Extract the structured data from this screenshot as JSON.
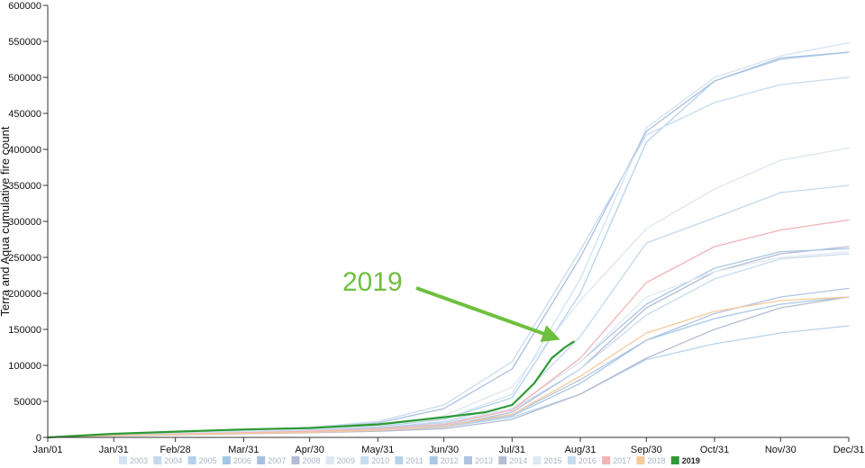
{
  "chart_data": {
    "type": "line",
    "ylabel": "Terra and Aqua cumulative fire count",
    "xlabel": "",
    "ylim": [
      0,
      600000
    ],
    "y_ticks": [
      0,
      50000,
      100000,
      150000,
      200000,
      250000,
      300000,
      350000,
      400000,
      450000,
      500000,
      550000,
      600000
    ],
    "x_tick_labels": [
      "Jan/01",
      "Jan/31",
      "Feb/28",
      "Mar/31",
      "Apr/30",
      "May/31",
      "Jun/30",
      "Jul/31",
      "Aug/31",
      "Sep/30",
      "Oct/31",
      "Nov/30",
      "Dec/31"
    ],
    "x_tick_days": [
      1,
      31,
      59,
      90,
      120,
      151,
      181,
      212,
      243,
      273,
      304,
      334,
      365
    ],
    "x_unit": "day of year",
    "grid": false,
    "legend_position": "bottom",
    "annotation": {
      "text": "2019",
      "color": "#6fbf3f"
    },
    "series": [
      {
        "name": "2003",
        "color": "#d3e3f3",
        "x": [
          1,
          31,
          59,
          90,
          120,
          151,
          181,
          212,
          243,
          273,
          304,
          334,
          365
        ],
        "y": [
          0,
          4000,
          6000,
          8000,
          11000,
          15000,
          25000,
          60000,
          220000,
          430000,
          500000,
          530000,
          548000
        ]
      },
      {
        "name": "2004",
        "color": "#c3d9ee",
        "x": [
          1,
          31,
          59,
          90,
          120,
          151,
          181,
          212,
          243,
          273,
          304,
          334,
          365
        ],
        "y": [
          0,
          3000,
          5000,
          7000,
          9000,
          13000,
          22000,
          45000,
          140000,
          270000,
          305000,
          340000,
          350000
        ]
      },
      {
        "name": "2005",
        "color": "#b5d2ec",
        "x": [
          1,
          31,
          59,
          90,
          120,
          151,
          181,
          212,
          243,
          273,
          304,
          334,
          365
        ],
        "y": [
          0,
          3000,
          6000,
          8000,
          10000,
          15000,
          25000,
          55000,
          200000,
          410000,
          495000,
          525000,
          535000
        ]
      },
      {
        "name": "2006",
        "color": "#a6c7e6",
        "x": [
          1,
          31,
          59,
          90,
          120,
          151,
          181,
          212,
          243,
          273,
          304,
          334,
          365
        ],
        "y": [
          0,
          3000,
          5000,
          6000,
          8000,
          10000,
          15000,
          30000,
          75000,
          135000,
          165000,
          185000,
          195000
        ]
      },
      {
        "name": "2007",
        "color": "#a9bfe0",
        "x": [
          1,
          31,
          59,
          90,
          120,
          151,
          181,
          212,
          243,
          273,
          304,
          334,
          365
        ],
        "y": [
          0,
          4000,
          7000,
          10000,
          13000,
          20000,
          40000,
          95000,
          250000,
          425000,
          495000,
          527000,
          535000
        ]
      },
      {
        "name": "2008",
        "color": "#b4bcd4",
        "x": [
          1,
          31,
          59,
          90,
          120,
          151,
          181,
          212,
          243,
          273,
          304,
          334,
          365
        ],
        "y": [
          0,
          2500,
          4500,
          6000,
          7500,
          10000,
          15000,
          35000,
          95000,
          180000,
          230000,
          255000,
          265000
        ]
      },
      {
        "name": "2009",
        "color": "#dde6f2",
        "x": [
          1,
          31,
          59,
          90,
          120,
          151,
          181,
          212,
          243,
          273,
          304,
          334,
          365
        ],
        "y": [
          0,
          3000,
          6000,
          8000,
          11000,
          16000,
          30000,
          70000,
          190000,
          290000,
          345000,
          385000,
          402000
        ]
      },
      {
        "name": "2010",
        "color": "#c6dcf0",
        "x": [
          1,
          31,
          59,
          90,
          120,
          151,
          181,
          212,
          243,
          273,
          304,
          334,
          365
        ],
        "y": [
          0,
          4000,
          7000,
          10000,
          14000,
          22000,
          45000,
          105000,
          260000,
          420000,
          465000,
          490000,
          500000
        ]
      },
      {
        "name": "2011",
        "color": "#b8d4ec",
        "x": [
          1,
          31,
          59,
          90,
          120,
          151,
          181,
          212,
          243,
          273,
          304,
          334,
          365
        ],
        "y": [
          0,
          2500,
          4000,
          5500,
          7000,
          9000,
          14000,
          28000,
          60000,
          108000,
          130000,
          145000,
          155000
        ]
      },
      {
        "name": "2012",
        "color": "#a9c8e6",
        "x": [
          1,
          31,
          59,
          90,
          120,
          151,
          181,
          212,
          243,
          273,
          304,
          334,
          365
        ],
        "y": [
          0,
          3000,
          5000,
          7000,
          9500,
          13000,
          20000,
          40000,
          105000,
          185000,
          235000,
          258000,
          262000
        ]
      },
      {
        "name": "2013",
        "color": "#b0c3e0",
        "x": [
          1,
          31,
          59,
          90,
          120,
          151,
          181,
          212,
          243,
          273,
          304,
          334,
          365
        ],
        "y": [
          0,
          2500,
          4500,
          6000,
          8000,
          11000,
          16000,
          32000,
          80000,
          135000,
          172000,
          195000,
          207000
        ]
      },
      {
        "name": "2014",
        "color": "#b7bcd2",
        "x": [
          1,
          31,
          59,
          90,
          120,
          151,
          181,
          212,
          243,
          273,
          304,
          334,
          365
        ],
        "y": [
          0,
          2000,
          3500,
          5000,
          6500,
          8500,
          12000,
          25000,
          60000,
          110000,
          150000,
          180000,
          195000
        ]
      },
      {
        "name": "2015",
        "color": "#e0e8f3",
        "x": [
          1,
          31,
          59,
          90,
          120,
          151,
          181,
          212,
          243,
          273,
          304,
          334,
          365
        ],
        "y": [
          0,
          3000,
          5000,
          7000,
          9000,
          12000,
          19000,
          40000,
          105000,
          195000,
          230000,
          250000,
          258000
        ]
      },
      {
        "name": "2016",
        "color": "#c8dbef",
        "x": [
          1,
          31,
          59,
          90,
          120,
          151,
          181,
          212,
          243,
          273,
          304,
          334,
          365
        ],
        "y": [
          0,
          2500,
          4500,
          6000,
          8000,
          11000,
          17000,
          38000,
          95000,
          170000,
          220000,
          248000,
          255000
        ]
      },
      {
        "name": "2017",
        "color": "#f2b3b6",
        "x": [
          1,
          31,
          59,
          90,
          120,
          151,
          181,
          212,
          243,
          273,
          304,
          334,
          365
        ],
        "y": [
          0,
          2500,
          4500,
          6500,
          8500,
          12000,
          18000,
          38000,
          110000,
          215000,
          265000,
          288000,
          302000
        ]
      },
      {
        "name": "2018",
        "color": "#f7c99b",
        "x": [
          1,
          31,
          59,
          90,
          120,
          151,
          181,
          212,
          243,
          273,
          304,
          334,
          365
        ],
        "y": [
          0,
          2500,
          4000,
          5500,
          7000,
          10000,
          15000,
          32000,
          85000,
          145000,
          175000,
          190000,
          195000
        ]
      },
      {
        "name": "2019",
        "color": "#2e9a35",
        "x": [
          1,
          31,
          59,
          90,
          120,
          151,
          181,
          200,
          212,
          222,
          230,
          236,
          240
        ],
        "y": [
          0,
          5000,
          8000,
          11000,
          13000,
          18000,
          28000,
          35000,
          45000,
          75000,
          110000,
          125000,
          133000
        ]
      }
    ]
  }
}
